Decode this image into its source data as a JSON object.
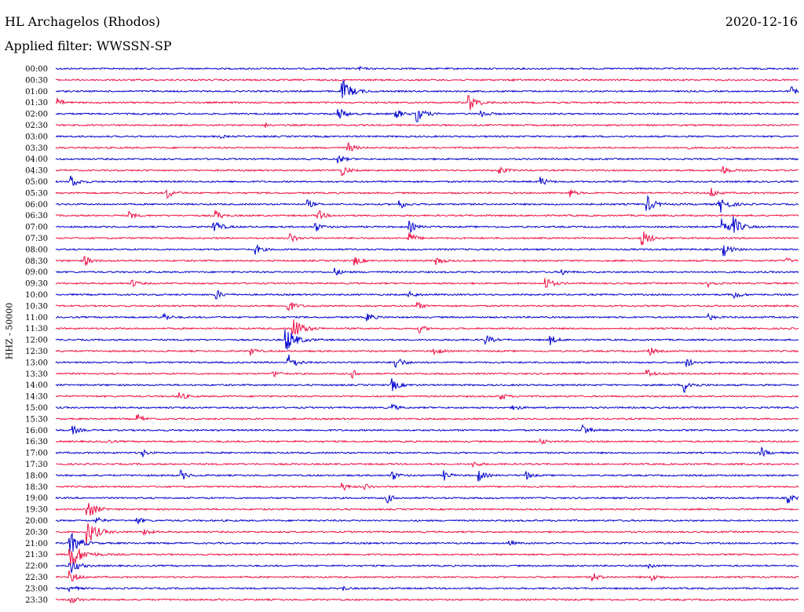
{
  "header": {
    "station": "HL Archagelos (Rhodos)",
    "date": "2020-12-16",
    "filter": "Applied filter: WWSSN-SP"
  },
  "chart_data": {
    "type": "line",
    "title": "HL Archagelos (Rhodos)",
    "subtitle": "Applied filter: WWSSN-SP",
    "ylabel": "HHZ - 50000",
    "x_unit": "minutes within 30-minute trace window",
    "xlim": [
      0,
      30
    ],
    "row_labels": [
      "00:00",
      "00:30",
      "01:00",
      "01:30",
      "02:00",
      "02:30",
      "03:00",
      "03:30",
      "04:00",
      "04:30",
      "05:00",
      "05:30",
      "06:00",
      "06:30",
      "07:00",
      "07:30",
      "08:00",
      "08:30",
      "09:00",
      "09:30",
      "10:00",
      "10:30",
      "11:00",
      "11:30",
      "12:00",
      "12:30",
      "13:00",
      "13:30",
      "14:00",
      "14:30",
      "15:00",
      "15:30",
      "16:00",
      "16:30",
      "17:00",
      "17:30",
      "18:00",
      "18:30",
      "19:00",
      "19:30",
      "20:00",
      "20:30",
      "21:00",
      "21:30",
      "22:00",
      "22:30",
      "23:00",
      "23:30"
    ],
    "row_colors": [
      "#0000cc",
      "#ee1144"
    ],
    "events": [
      {
        "row": 0,
        "minute": 12.3,
        "amp": 1.8
      },
      {
        "row": 1,
        "minute": 18.5,
        "amp": 1.0
      },
      {
        "row": 2,
        "minute": 11.6,
        "amp": 14
      },
      {
        "row": 2,
        "minute": 29.7,
        "amp": 6
      },
      {
        "row": 3,
        "minute": 0.1,
        "amp": 5
      },
      {
        "row": 3,
        "minute": 16.7,
        "amp": 11
      },
      {
        "row": 4,
        "minute": 11.4,
        "amp": 9
      },
      {
        "row": 4,
        "minute": 13.7,
        "amp": 8
      },
      {
        "row": 4,
        "minute": 14.6,
        "amp": 10
      },
      {
        "row": 4,
        "minute": 17.2,
        "amp": 6
      },
      {
        "row": 5,
        "minute": 8.5,
        "amp": 2.5
      },
      {
        "row": 6,
        "minute": 6.7,
        "amp": 1.8
      },
      {
        "row": 7,
        "minute": 11.8,
        "amp": 7
      },
      {
        "row": 7,
        "minute": 25.5,
        "amp": 1.5
      },
      {
        "row": 8,
        "minute": 11.4,
        "amp": 6
      },
      {
        "row": 9,
        "minute": 11.6,
        "amp": 6
      },
      {
        "row": 9,
        "minute": 17.9,
        "amp": 6
      },
      {
        "row": 9,
        "minute": 26.9,
        "amp": 7
      },
      {
        "row": 10,
        "minute": 0.6,
        "amp": 9
      },
      {
        "row": 10,
        "minute": 19.6,
        "amp": 6
      },
      {
        "row": 11,
        "minute": 4.5,
        "amp": 7
      },
      {
        "row": 11,
        "minute": 20.8,
        "amp": 5
      },
      {
        "row": 11,
        "minute": 26.5,
        "amp": 6
      },
      {
        "row": 12,
        "minute": 10.2,
        "amp": 5
      },
      {
        "row": 12,
        "minute": 13.9,
        "amp": 6
      },
      {
        "row": 12,
        "minute": 23.9,
        "amp": 10
      },
      {
        "row": 12,
        "minute": 26.8,
        "amp": 12
      },
      {
        "row": 13,
        "minute": 3.0,
        "amp": 5
      },
      {
        "row": 13,
        "minute": 6.5,
        "amp": 6
      },
      {
        "row": 13,
        "minute": 10.6,
        "amp": 7
      },
      {
        "row": 14,
        "minute": 6.4,
        "amp": 9
      },
      {
        "row": 14,
        "minute": 10.5,
        "amp": 6
      },
      {
        "row": 14,
        "minute": 14.3,
        "amp": 7
      },
      {
        "row": 14,
        "minute": 26.9,
        "amp": 12
      },
      {
        "row": 14,
        "minute": 27.4,
        "amp": 10
      },
      {
        "row": 15,
        "minute": 9.5,
        "amp": 6
      },
      {
        "row": 15,
        "minute": 14.3,
        "amp": 7
      },
      {
        "row": 15,
        "minute": 23.7,
        "amp": 11
      },
      {
        "row": 16,
        "minute": 8.1,
        "amp": 6
      },
      {
        "row": 16,
        "minute": 27.0,
        "amp": 8
      },
      {
        "row": 17,
        "minute": 1.2,
        "amp": 6
      },
      {
        "row": 17,
        "minute": 12.1,
        "amp": 6
      },
      {
        "row": 17,
        "minute": 15.4,
        "amp": 6
      },
      {
        "row": 17,
        "minute": 29.5,
        "amp": 4
      },
      {
        "row": 18,
        "minute": 11.3,
        "amp": 5
      },
      {
        "row": 18,
        "minute": 20.4,
        "amp": 5
      },
      {
        "row": 19,
        "minute": 3.1,
        "amp": 5
      },
      {
        "row": 19,
        "minute": 19.8,
        "amp": 8
      },
      {
        "row": 19,
        "minute": 26.4,
        "amp": 5
      },
      {
        "row": 20,
        "minute": 6.5,
        "amp": 6
      },
      {
        "row": 20,
        "minute": 14.3,
        "amp": 5
      },
      {
        "row": 20,
        "minute": 27.4,
        "amp": 6
      },
      {
        "row": 21,
        "minute": 9.4,
        "amp": 8
      },
      {
        "row": 21,
        "minute": 14.6,
        "amp": 5
      },
      {
        "row": 22,
        "minute": 4.4,
        "amp": 5
      },
      {
        "row": 22,
        "minute": 12.6,
        "amp": 6
      },
      {
        "row": 22,
        "minute": 26.4,
        "amp": 4
      },
      {
        "row": 23,
        "minute": 9.6,
        "amp": 14
      },
      {
        "row": 23,
        "minute": 14.7,
        "amp": 5
      },
      {
        "row": 24,
        "minute": 9.3,
        "amp": 16
      },
      {
        "row": 24,
        "minute": 17.4,
        "amp": 6
      },
      {
        "row": 24,
        "minute": 20.0,
        "amp": 6
      },
      {
        "row": 25,
        "minute": 7.9,
        "amp": 5
      },
      {
        "row": 25,
        "minute": 15.3,
        "amp": 6
      },
      {
        "row": 25,
        "minute": 24.0,
        "amp": 5
      },
      {
        "row": 26,
        "minute": 9.4,
        "amp": 10
      },
      {
        "row": 26,
        "minute": 13.7,
        "amp": 9
      },
      {
        "row": 26,
        "minute": 25.5,
        "amp": 6
      },
      {
        "row": 27,
        "minute": 8.8,
        "amp": 5
      },
      {
        "row": 27,
        "minute": 12.0,
        "amp": 5
      },
      {
        "row": 27,
        "minute": 23.9,
        "amp": 6
      },
      {
        "row": 28,
        "minute": 13.6,
        "amp": 8
      },
      {
        "row": 28,
        "minute": 25.4,
        "amp": 9
      },
      {
        "row": 29,
        "minute": 5.0,
        "amp": 6
      },
      {
        "row": 29,
        "minute": 18.0,
        "amp": 5
      },
      {
        "row": 30,
        "minute": 13.6,
        "amp": 5
      },
      {
        "row": 30,
        "minute": 18.5,
        "amp": 5
      },
      {
        "row": 31,
        "minute": 3.3,
        "amp": 6
      },
      {
        "row": 32,
        "minute": 0.7,
        "amp": 6
      },
      {
        "row": 32,
        "minute": 21.3,
        "amp": 7
      },
      {
        "row": 33,
        "minute": 2.0,
        "amp": 4
      },
      {
        "row": 33,
        "minute": 19.6,
        "amp": 4
      },
      {
        "row": 34,
        "minute": 3.5,
        "amp": 5
      },
      {
        "row": 34,
        "minute": 28.5,
        "amp": 6
      },
      {
        "row": 35,
        "minute": 16.9,
        "amp": 4
      },
      {
        "row": 36,
        "minute": 5.1,
        "amp": 6
      },
      {
        "row": 36,
        "minute": 13.6,
        "amp": 6
      },
      {
        "row": 36,
        "minute": 15.7,
        "amp": 6
      },
      {
        "row": 36,
        "minute": 17.1,
        "amp": 7
      },
      {
        "row": 36,
        "minute": 19.0,
        "amp": 5
      },
      {
        "row": 37,
        "minute": 11.6,
        "amp": 5
      },
      {
        "row": 37,
        "minute": 12.5,
        "amp": 4
      },
      {
        "row": 38,
        "minute": 13.4,
        "amp": 6
      },
      {
        "row": 38,
        "minute": 29.6,
        "amp": 6
      },
      {
        "row": 39,
        "minute": 1.3,
        "amp": 12
      },
      {
        "row": 40,
        "minute": 1.6,
        "amp": 6
      },
      {
        "row": 40,
        "minute": 3.3,
        "amp": 5
      },
      {
        "row": 41,
        "minute": 1.3,
        "amp": 15
      },
      {
        "row": 41,
        "minute": 3.6,
        "amp": 5
      },
      {
        "row": 42,
        "minute": 0.6,
        "amp": 14
      },
      {
        "row": 42,
        "minute": 18.3,
        "amp": 4
      },
      {
        "row": 43,
        "minute": 0.6,
        "amp": 18
      },
      {
        "row": 44,
        "minute": 0.6,
        "amp": 10
      },
      {
        "row": 44,
        "minute": 24.0,
        "amp": 4
      },
      {
        "row": 45,
        "minute": 0.6,
        "amp": 8
      },
      {
        "row": 45,
        "minute": 21.7,
        "amp": 6
      },
      {
        "row": 45,
        "minute": 24.1,
        "amp": 5
      },
      {
        "row": 46,
        "minute": 0.6,
        "amp": 5
      },
      {
        "row": 46,
        "minute": 11.6,
        "amp": 3
      },
      {
        "row": 47,
        "minute": 0.6,
        "amp": 6
      }
    ]
  }
}
